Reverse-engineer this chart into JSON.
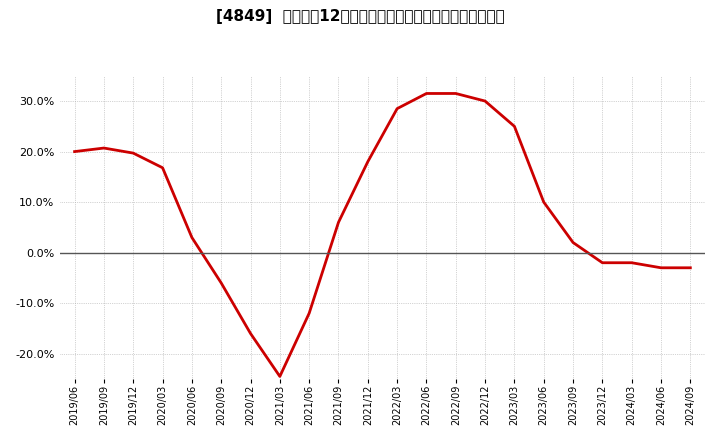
{
  "title": "[4849]  売上高の12か月移動合計の対前年同期増減率の推移",
  "line_color": "#cc0000",
  "background_color": "#ffffff",
  "plot_background_color": "#ffffff",
  "grid_color": "#aaaaaa",
  "zero_line_color": "#555555",
  "dates": [
    "2019/06",
    "2019/09",
    "2019/12",
    "2020/03",
    "2020/06",
    "2020/09",
    "2020/12",
    "2021/03",
    "2021/06",
    "2021/09",
    "2021/12",
    "2022/03",
    "2022/06",
    "2022/09",
    "2022/12",
    "2023/03",
    "2023/06",
    "2023/09",
    "2023/12",
    "2024/03",
    "2024/06",
    "2024/09"
  ],
  "values": [
    0.2,
    0.207,
    0.197,
    0.168,
    0.03,
    -0.06,
    -0.16,
    -0.245,
    -0.12,
    0.06,
    0.18,
    0.285,
    0.315,
    0.315,
    0.3,
    0.25,
    0.1,
    0.02,
    -0.02,
    -0.02,
    -0.03,
    -0.03
  ],
  "ylim": [
    -0.25,
    0.35
  ],
  "yticks": [
    -0.2,
    -0.1,
    0.0,
    0.1,
    0.2,
    0.3
  ],
  "figsize": [
    7.2,
    4.4
  ],
  "dpi": 100,
  "title_fontsize": 11,
  "tick_fontsize": 8,
  "xtick_fontsize": 7,
  "line_width": 2.0
}
